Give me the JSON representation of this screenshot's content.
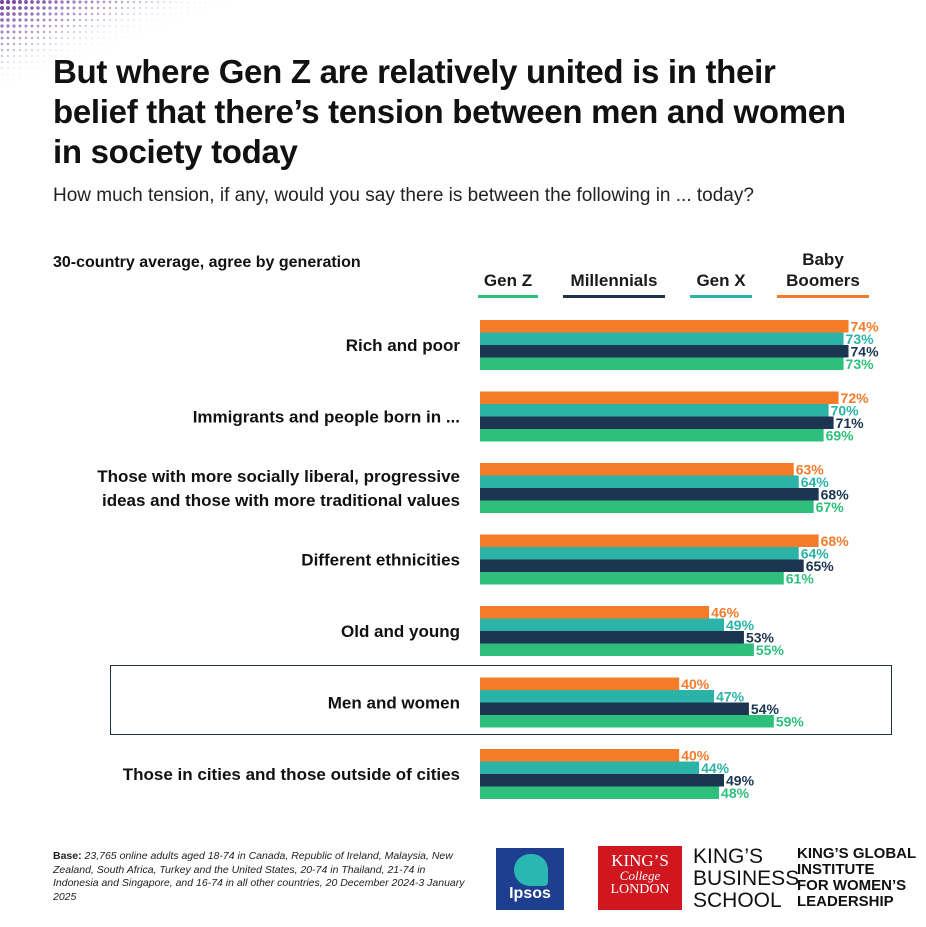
{
  "title": "But where Gen Z are relatively united is in their belief that there’s tension between men and women in society today",
  "subtitle": "How much tension, if any, would you say there is between the following in ... today?",
  "avg_label": "30-country average, agree by generation",
  "legend": [
    {
      "label": "Gen Z",
      "color": "#2dbf7b"
    },
    {
      "label": "Millennials",
      "color": "#1c3550"
    },
    {
      "label": "Gen X",
      "color": "#2ab3a6"
    },
    {
      "label": "Baby Boomers",
      "color": "#f47b2a"
    }
  ],
  "chart_data": {
    "type": "bar",
    "orientation": "horizontal",
    "categories": [
      "Rich and poor",
      "Immigrants and people born in ...",
      "Those with more socially liberal, progressive ideas and those with more traditional values",
      "Different ethnicities",
      "Old and young",
      "Men and women",
      "Those in cities and those outside of cities"
    ],
    "category_lines": [
      [
        "Rich and poor"
      ],
      [
        "Immigrants and people born in ..."
      ],
      [
        "Those with more socially liberal, progressive",
        "ideas and those with more traditional values"
      ],
      [
        "Different ethnicities"
      ],
      [
        "Old and young"
      ],
      [
        "Men and women"
      ],
      [
        "Those in cities and those outside of cities"
      ]
    ],
    "series": [
      {
        "name": "Baby Boomers",
        "color": "#f47b2a",
        "values": [
          74,
          72,
          63,
          68,
          46,
          40,
          40
        ]
      },
      {
        "name": "Gen X",
        "color": "#2ab3a6",
        "values": [
          73,
          70,
          64,
          64,
          49,
          47,
          44
        ]
      },
      {
        "name": "Millennials",
        "color": "#1c3550",
        "values": [
          74,
          71,
          68,
          65,
          53,
          54,
          49
        ]
      },
      {
        "name": "Gen Z",
        "color": "#2dbf7b",
        "values": [
          73,
          69,
          67,
          61,
          55,
          59,
          48
        ]
      }
    ],
    "value_suffix": "%",
    "xlim": [
      0,
      100
    ],
    "highlighted_category": "Men and women",
    "grid": false,
    "legend_position": "top"
  },
  "base_label": "Base:",
  "base_text": "23,765 online adults aged 18-74 in Canada, Republic of Ireland, Malaysia, New Zealand, South Africa, Turkey and the United States, 20-74 in Thailand, 21-74 in Indonesia and Singapore, and 16-74 in all other countries, 20 December 2024-3 January 2025",
  "logos": {
    "ipsos": "Ipsos",
    "kings_line1": "KING’S",
    "kings_line2": "College",
    "kings_line3": "LONDON",
    "kbs": [
      "KING’S",
      "BUSINESS",
      "SCHOOL"
    ],
    "gi": [
      "KING’S GLOBAL",
      "INSTITUTE",
      "FOR WOMEN’S",
      "LEADERSHIP"
    ]
  }
}
